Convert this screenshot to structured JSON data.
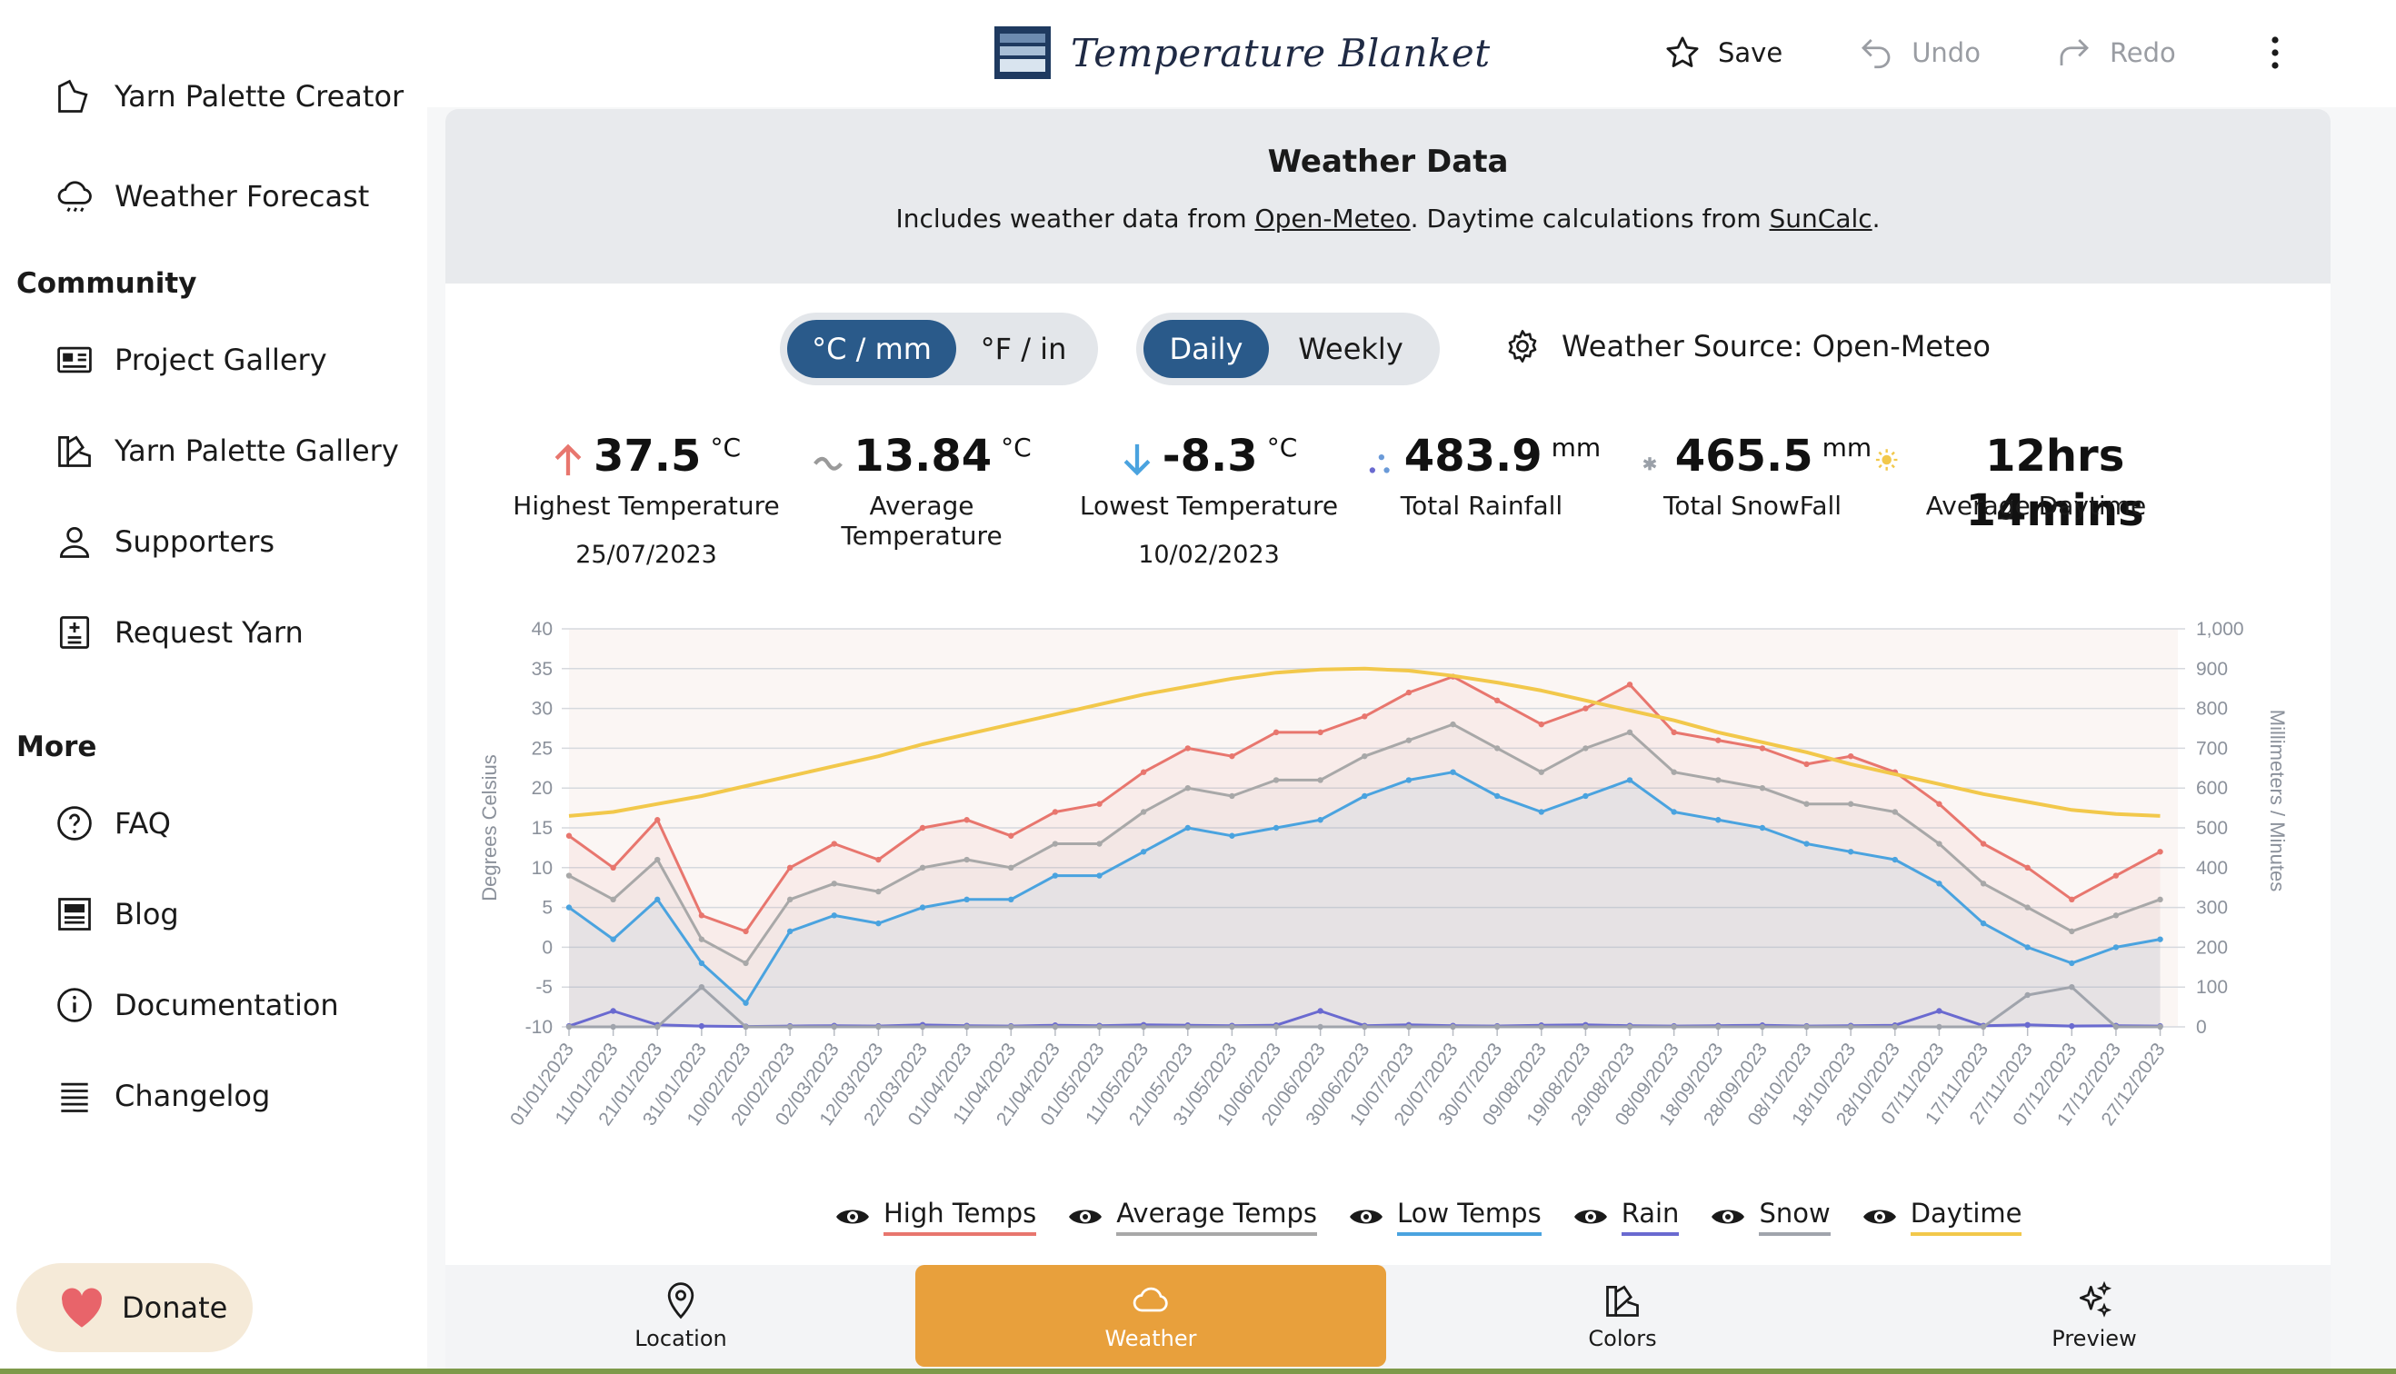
{
  "header": {
    "brand": "Temperature Blanket",
    "save_label": "Save",
    "undo_label": "Undo",
    "redo_label": "Redo",
    "icons": {
      "save": "star-icon",
      "undo": "undo-icon",
      "redo": "redo-icon",
      "menu": "kebab-menu-icon"
    }
  },
  "sidebar": {
    "top_items": [
      {
        "label": "Yarn Palette Creator",
        "icon": "palette-icon"
      },
      {
        "label": "Weather Forecast",
        "icon": "cloud-rain-icon"
      }
    ],
    "community_heading": "Community",
    "community_items": [
      {
        "label": "Project Gallery",
        "icon": "gallery-icon"
      },
      {
        "label": "Yarn Palette Gallery",
        "icon": "palette-icon"
      },
      {
        "label": "Supporters",
        "icon": "person-icon"
      },
      {
        "label": "Request Yarn",
        "icon": "request-icon"
      }
    ],
    "more_heading": "More",
    "more_items": [
      {
        "label": "FAQ",
        "icon": "question-icon"
      },
      {
        "label": "Blog",
        "icon": "blog-icon"
      },
      {
        "label": "Documentation",
        "icon": "info-icon"
      },
      {
        "label": "Changelog",
        "icon": "list-icon"
      }
    ],
    "donate_label": "Donate"
  },
  "weather": {
    "title": "Weather Data",
    "sub_prefix": "Includes weather data from ",
    "sub_link1": "Open-Meteo",
    "sub_middle": ". Daytime calculations from ",
    "sub_link2": "SunCalc",
    "sub_suffix": ".",
    "units": {
      "metric": "°C / mm",
      "imperial": "°F / in",
      "selected": "metric"
    },
    "period": {
      "daily": "Daily",
      "weekly": "Weekly",
      "selected": "daily"
    },
    "source_label": "Weather Source: Open-Meteo"
  },
  "stats": [
    {
      "value": "37.5",
      "unit": "°C",
      "label": "Highest Temperature",
      "date": "25/07/2023",
      "icon": "arrow-up-icon",
      "color": "#e8766e"
    },
    {
      "value": "13.84",
      "unit": "°C",
      "label": "Average Temperature",
      "date": "",
      "icon": "tilde-icon",
      "color": "#9a9a9a"
    },
    {
      "value": "-8.3",
      "unit": "°C",
      "label": "Lowest Temperature",
      "date": "10/02/2023",
      "icon": "arrow-down-icon",
      "color": "#4aa3df"
    },
    {
      "value": "483.9",
      "unit": "mm",
      "label": "Total Rainfall",
      "date": "",
      "icon": "rain-dots-icon",
      "color": "#6a6ad0"
    },
    {
      "value": "465.5",
      "unit": "mm",
      "label": "Total SnowFall",
      "date": "",
      "icon": "snowflake-icon",
      "color": "#9aa0a8"
    },
    {
      "value": "12hrs 14mins",
      "unit": "",
      "label": "Average Daytime",
      "date": "",
      "icon": "sun-icon",
      "color": "#f2c84b"
    }
  ],
  "chart_data": {
    "type": "line",
    "ylabel": "Degrees Celsius",
    "y2label": "Millimeters / Minutes",
    "ylim": [
      -10,
      40
    ],
    "y2lim": [
      0,
      1000
    ],
    "yticks": [
      "40",
      "35",
      "30",
      "25",
      "20",
      "15",
      "10",
      "5",
      "0",
      "-5",
      "-10"
    ],
    "y2ticks": [
      "1,000",
      "900",
      "800",
      "700",
      "600",
      "500",
      "400",
      "300",
      "200",
      "100",
      "0"
    ],
    "xlim": [
      "01/01/2023",
      "31/12/2023"
    ],
    "xticks": [
      "01/01/2023",
      "11/01/2023",
      "21/01/2023",
      "31/01/2023",
      "10/02/2023",
      "20/02/2023",
      "02/03/2023",
      "12/03/2023",
      "22/03/2023",
      "01/04/2023",
      "11/04/2023",
      "21/04/2023",
      "01/05/2023",
      "11/05/2023",
      "21/05/2023",
      "31/05/2023",
      "10/06/2023",
      "20/06/2023",
      "30/06/2023",
      "10/07/2023",
      "20/07/2023",
      "30/07/2023",
      "09/08/2023",
      "19/08/2023",
      "29/08/2023",
      "08/09/2023",
      "18/09/2023",
      "28/09/2023",
      "08/10/2023",
      "18/10/2023",
      "28/10/2023",
      "07/11/2023",
      "17/11/2023",
      "27/11/2023",
      "07/12/2023",
      "17/12/2023",
      "27/12/2023"
    ],
    "grid": true,
    "series": [
      {
        "name": "High Temps",
        "color": "#e8766e",
        "x": [
          "01/01/2023",
          "11/01/2023",
          "21/01/2023",
          "31/01/2023",
          "10/02/2023",
          "20/02/2023",
          "02/03/2023",
          "12/03/2023",
          "22/03/2023",
          "01/04/2023",
          "11/04/2023",
          "21/04/2023",
          "01/05/2023",
          "11/05/2023",
          "21/05/2023",
          "31/05/2023",
          "10/06/2023",
          "20/06/2023",
          "30/06/2023",
          "10/07/2023",
          "20/07/2023",
          "30/07/2023",
          "09/08/2023",
          "19/08/2023",
          "29/08/2023",
          "08/09/2023",
          "18/09/2023",
          "28/09/2023",
          "08/10/2023",
          "18/10/2023",
          "28/10/2023",
          "07/11/2023",
          "17/11/2023",
          "27/11/2023",
          "07/12/2023",
          "17/12/2023",
          "27/12/2023"
        ],
        "values": [
          14,
          10,
          16,
          4,
          2,
          10,
          13,
          11,
          15,
          16,
          14,
          17,
          18,
          22,
          25,
          24,
          27,
          27,
          29,
          32,
          34,
          31,
          28,
          30,
          33,
          27,
          26,
          25,
          23,
          24,
          22,
          18,
          13,
          10,
          6,
          9,
          12
        ]
      },
      {
        "name": "Average Temps",
        "color": "#a8a8a8",
        "x": [
          "01/01/2023",
          "11/01/2023",
          "21/01/2023",
          "31/01/2023",
          "10/02/2023",
          "20/02/2023",
          "02/03/2023",
          "12/03/2023",
          "22/03/2023",
          "01/04/2023",
          "11/04/2023",
          "21/04/2023",
          "01/05/2023",
          "11/05/2023",
          "21/05/2023",
          "31/05/2023",
          "10/06/2023",
          "20/06/2023",
          "30/06/2023",
          "10/07/2023",
          "20/07/2023",
          "30/07/2023",
          "09/08/2023",
          "19/08/2023",
          "29/08/2023",
          "08/09/2023",
          "18/09/2023",
          "28/09/2023",
          "08/10/2023",
          "18/10/2023",
          "28/10/2023",
          "07/11/2023",
          "17/11/2023",
          "27/11/2023",
          "07/12/2023",
          "17/12/2023",
          "27/12/2023"
        ],
        "values": [
          9,
          6,
          11,
          1,
          -2,
          6,
          8,
          7,
          10,
          11,
          10,
          13,
          13,
          17,
          20,
          19,
          21,
          21,
          24,
          26,
          28,
          25,
          22,
          25,
          27,
          22,
          21,
          20,
          18,
          18,
          17,
          13,
          8,
          5,
          2,
          4,
          6
        ]
      },
      {
        "name": "Low Temps",
        "color": "#4aa3df",
        "x": [
          "01/01/2023",
          "11/01/2023",
          "21/01/2023",
          "31/01/2023",
          "10/02/2023",
          "20/02/2023",
          "02/03/2023",
          "12/03/2023",
          "22/03/2023",
          "01/04/2023",
          "11/04/2023",
          "21/04/2023",
          "01/05/2023",
          "11/05/2023",
          "21/05/2023",
          "31/05/2023",
          "10/06/2023",
          "20/06/2023",
          "30/06/2023",
          "10/07/2023",
          "20/07/2023",
          "30/07/2023",
          "09/08/2023",
          "19/08/2023",
          "29/08/2023",
          "08/09/2023",
          "18/09/2023",
          "28/09/2023",
          "08/10/2023",
          "18/10/2023",
          "28/10/2023",
          "07/11/2023",
          "17/11/2023",
          "27/11/2023",
          "07/12/2023",
          "17/12/2023",
          "27/12/2023"
        ],
        "values": [
          5,
          1,
          6,
          -2,
          -7,
          2,
          4,
          3,
          5,
          6,
          6,
          9,
          9,
          12,
          15,
          14,
          15,
          16,
          19,
          21,
          22,
          19,
          17,
          19,
          21,
          17,
          16,
          15,
          13,
          12,
          11,
          8,
          3,
          0,
          -2,
          0,
          1
        ]
      },
      {
        "name": "Rain",
        "color": "#6a6ad0",
        "axis": "right",
        "x": [
          "01/01/2023",
          "11/01/2023",
          "21/01/2023",
          "31/01/2023",
          "10/02/2023",
          "20/02/2023",
          "02/03/2023",
          "12/03/2023",
          "22/03/2023",
          "01/04/2023",
          "11/04/2023",
          "21/04/2023",
          "01/05/2023",
          "11/05/2023",
          "21/05/2023",
          "31/05/2023",
          "10/06/2023",
          "20/06/2023",
          "30/06/2023",
          "10/07/2023",
          "20/07/2023",
          "30/07/2023",
          "09/08/2023",
          "19/08/2023",
          "29/08/2023",
          "08/09/2023",
          "18/09/2023",
          "28/09/2023",
          "08/10/2023",
          "18/10/2023",
          "28/10/2023",
          "07/11/2023",
          "17/11/2023",
          "27/11/2023",
          "07/12/2023",
          "17/12/2023",
          "27/12/2023"
        ],
        "values": [
          2,
          40,
          5,
          2,
          1,
          2,
          3,
          2,
          5,
          3,
          2,
          4,
          3,
          5,
          4,
          3,
          4,
          40,
          3,
          5,
          3,
          2,
          4,
          5,
          3,
          2,
          3,
          4,
          2,
          3,
          4,
          40,
          3,
          5,
          2,
          3,
          2
        ]
      },
      {
        "name": "Snow",
        "color": "#a0a4ac",
        "axis": "right",
        "x": [
          "01/01/2023",
          "11/01/2023",
          "21/01/2023",
          "31/01/2023",
          "10/02/2023",
          "20/02/2023",
          "02/03/2023",
          "12/03/2023",
          "22/03/2023",
          "01/04/2023",
          "11/04/2023",
          "21/04/2023",
          "01/05/2023",
          "11/05/2023",
          "21/05/2023",
          "31/05/2023",
          "10/06/2023",
          "20/06/2023",
          "30/06/2023",
          "10/07/2023",
          "20/07/2023",
          "30/07/2023",
          "09/08/2023",
          "19/08/2023",
          "29/08/2023",
          "08/09/2023",
          "18/09/2023",
          "28/09/2023",
          "08/10/2023",
          "18/10/2023",
          "28/10/2023",
          "07/11/2023",
          "17/11/2023",
          "27/11/2023",
          "07/12/2023",
          "17/12/2023",
          "27/12/2023"
        ],
        "values": [
          0,
          0,
          0,
          100,
          0,
          0,
          0,
          0,
          0,
          0,
          0,
          0,
          0,
          0,
          0,
          0,
          0,
          0,
          0,
          0,
          0,
          0,
          0,
          0,
          0,
          0,
          0,
          0,
          0,
          0,
          0,
          0,
          0,
          80,
          100,
          0,
          0
        ]
      },
      {
        "name": "Daytime",
        "color": "#f2c84b",
        "axis": "right",
        "x": [
          "01/01/2023",
          "11/01/2023",
          "21/01/2023",
          "31/01/2023",
          "10/02/2023",
          "20/02/2023",
          "02/03/2023",
          "12/03/2023",
          "22/03/2023",
          "01/04/2023",
          "11/04/2023",
          "21/04/2023",
          "01/05/2023",
          "11/05/2023",
          "21/05/2023",
          "31/05/2023",
          "10/06/2023",
          "20/06/2023",
          "30/06/2023",
          "10/07/2023",
          "20/07/2023",
          "30/07/2023",
          "09/08/2023",
          "19/08/2023",
          "29/08/2023",
          "08/09/2023",
          "18/09/2023",
          "28/09/2023",
          "08/10/2023",
          "18/10/2023",
          "28/10/2023",
          "07/11/2023",
          "17/11/2023",
          "27/11/2023",
          "07/12/2023",
          "17/12/2023",
          "27/12/2023"
        ],
        "values": [
          530,
          540,
          560,
          580,
          605,
          630,
          655,
          680,
          710,
          735,
          760,
          785,
          810,
          835,
          855,
          875,
          890,
          898,
          900,
          895,
          882,
          865,
          845,
          820,
          795,
          770,
          740,
          715,
          690,
          660,
          635,
          610,
          585,
          565,
          545,
          535,
          530
        ]
      }
    ]
  },
  "legend": [
    {
      "label": "High Temps",
      "color": "#e8766e"
    },
    {
      "label": "Average Temps",
      "color": "#a8a8a8"
    },
    {
      "label": "Low Temps",
      "color": "#4aa3df"
    },
    {
      "label": "Rain",
      "color": "#6a6ad0"
    },
    {
      "label": "Snow",
      "color": "#a0a4ac"
    },
    {
      "label": "Daytime",
      "color": "#f2c84b"
    }
  ],
  "bottom_nav": [
    {
      "label": "Location",
      "icon": "location-pin-icon"
    },
    {
      "label": "Weather",
      "icon": "cloud-icon",
      "active": true
    },
    {
      "label": "Colors",
      "icon": "palette-icon"
    },
    {
      "label": "Preview",
      "icon": "sparkles-icon"
    }
  ]
}
